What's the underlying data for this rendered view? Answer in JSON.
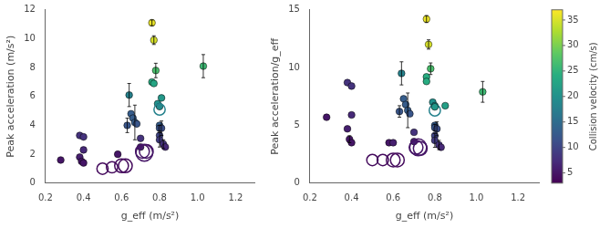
{
  "chart_data": [
    {
      "type": "scatter",
      "xlabel": "g_eff (m/s²)",
      "ylabel": "Peak acceleration (m/s²)",
      "xlim": [
        0.2,
        1.3
      ],
      "ylim": [
        0,
        12
      ],
      "xticks": [
        0.2,
        0.4,
        0.6,
        0.8,
        {
          "value": 1.0,
          "label": "1.0"
        },
        1.2
      ],
      "yticks": [
        0,
        2,
        4,
        6,
        8,
        10,
        12
      ],
      "grid": false,
      "x": [
        0.28,
        0.38,
        0.39,
        0.4,
        0.38,
        0.4,
        0.4,
        0.5,
        0.55,
        0.58,
        0.6,
        0.62,
        0.63,
        0.64,
        0.65,
        0.66,
        0.67,
        0.68,
        0.7,
        0.7,
        0.71,
        0.73,
        0.72,
        0.76,
        0.77,
        0.76,
        0.77,
        0.78,
        0.79,
        0.8,
        0.8,
        0.81,
        0.8,
        0.8,
        0.81,
        0.8,
        0.8,
        0.82,
        0.83,
        1.03
      ],
      "values": [
        1.6,
        1.8,
        1.5,
        1.4,
        3.3,
        3.2,
        2.3,
        1.0,
        1.1,
        2.0,
        1.2,
        1.2,
        4.0,
        6.1,
        4.8,
        4.5,
        4.2,
        4.1,
        3.1,
        2.5,
        2.2,
        2.2,
        2.1,
        7.0,
        6.9,
        11.1,
        9.9,
        7.8,
        5.5,
        5.3,
        5.1,
        5.9,
        4.0,
        3.8,
        3.8,
        3.3,
        3.0,
        2.7,
        2.5,
        8.1
      ],
      "color_values": [
        5,
        6,
        5,
        5,
        8,
        8,
        7,
        4,
        4,
        5,
        4,
        4,
        12,
        18,
        13,
        13,
        13,
        12,
        8,
        6,
        5,
        5,
        5,
        24,
        23,
        36,
        35,
        27,
        20,
        19,
        18,
        21,
        13,
        12,
        11,
        10,
        9,
        8,
        7,
        26
      ],
      "filled": [
        true,
        true,
        true,
        true,
        true,
        true,
        true,
        false,
        false,
        true,
        false,
        false,
        true,
        true,
        true,
        true,
        true,
        true,
        true,
        true,
        false,
        false,
        false,
        true,
        true,
        true,
        true,
        true,
        true,
        true,
        false,
        true,
        true,
        true,
        true,
        true,
        true,
        true,
        true,
        true
      ],
      "sizes": [
        30,
        30,
        30,
        30,
        30,
        30,
        30,
        80,
        80,
        30,
        120,
        120,
        30,
        30,
        30,
        30,
        30,
        30,
        30,
        30,
        120,
        120,
        180,
        30,
        30,
        30,
        30,
        30,
        30,
        30,
        80,
        30,
        30,
        30,
        30,
        30,
        30,
        30,
        30,
        30
      ],
      "errors": [
        0,
        0,
        0,
        0,
        0,
        0,
        0,
        0,
        0,
        0,
        0,
        0,
        0.5,
        0.8,
        0,
        0,
        1.2,
        0,
        0,
        0,
        0,
        0,
        0,
        0,
        0,
        0.2,
        0.3,
        0.5,
        0,
        0,
        0,
        0,
        0,
        0.2,
        0.5,
        0,
        0.5,
        0.3,
        0,
        0.8
      ]
    },
    {
      "type": "scatter",
      "xlabel": "g_eff (m/s²)",
      "ylabel": "Peak acceleration/g_eff",
      "xlim": [
        0.2,
        1.3
      ],
      "ylim": [
        0,
        15
      ],
      "xticks": [
        0.2,
        0.4,
        0.6,
        0.8,
        {
          "value": 1.0,
          "label": "1.0"
        },
        1.2
      ],
      "yticks": [
        0,
        5,
        10,
        15
      ],
      "grid": false,
      "x": [
        0.28,
        0.38,
        0.39,
        0.4,
        0.38,
        0.4,
        0.4,
        0.5,
        0.55,
        0.58,
        0.6,
        0.62,
        0.6,
        0.63,
        0.64,
        0.65,
        0.66,
        0.67,
        0.68,
        0.7,
        0.7,
        0.71,
        0.73,
        0.72,
        0.76,
        0.76,
        0.76,
        0.77,
        0.78,
        0.79,
        0.8,
        0.8,
        0.8,
        0.8,
        0.8,
        0.81,
        0.8,
        0.8,
        0.82,
        0.83,
        0.85,
        1.03
      ],
      "values": [
        5.7,
        4.7,
        3.8,
        3.5,
        8.7,
        8.4,
        5.9,
        2.0,
        2.0,
        3.5,
        2.0,
        2.0,
        3.5,
        6.2,
        9.5,
        7.3,
        6.8,
        6.3,
        6.0,
        4.4,
        3.6,
        3.1,
        3.0,
        3.1,
        9.2,
        8.8,
        14.2,
        12.0,
        9.9,
        7.0,
        6.7,
        6.3,
        6.6,
        5.0,
        4.8,
        4.7,
        4.1,
        3.7,
        3.3,
        3.1,
        6.7,
        7.9
      ],
      "color_values": [
        5,
        6,
        5,
        5,
        8,
        8,
        7,
        4,
        4,
        5,
        4,
        4,
        6,
        12,
        18,
        13,
        13,
        13,
        12,
        8,
        6,
        5,
        5,
        5,
        24,
        24,
        36,
        35,
        27,
        20,
        19,
        18,
        21,
        13,
        12,
        11,
        10,
        9,
        8,
        7,
        22,
        26
      ],
      "filled": [
        true,
        true,
        true,
        true,
        true,
        true,
        true,
        false,
        false,
        true,
        false,
        false,
        true,
        true,
        true,
        true,
        true,
        true,
        true,
        true,
        true,
        false,
        false,
        false,
        true,
        true,
        true,
        true,
        true,
        true,
        true,
        false,
        true,
        true,
        true,
        true,
        true,
        true,
        true,
        true,
        true,
        true
      ],
      "sizes": [
        30,
        30,
        30,
        30,
        30,
        30,
        30,
        80,
        80,
        30,
        120,
        120,
        30,
        30,
        30,
        30,
        30,
        30,
        30,
        30,
        30,
        120,
        120,
        180,
        30,
        30,
        30,
        30,
        30,
        30,
        30,
        80,
        30,
        30,
        30,
        30,
        30,
        30,
        30,
        30,
        30,
        30
      ],
      "errors": [
        0,
        0,
        0.3,
        0,
        0,
        0,
        0,
        0,
        0,
        0,
        0,
        0,
        0,
        0.5,
        1.0,
        0,
        0,
        1.5,
        0,
        0,
        0,
        0,
        0,
        0,
        0,
        0,
        0.3,
        0.4,
        0.5,
        0,
        0,
        0,
        0,
        0,
        0.3,
        0.6,
        0,
        0.6,
        0.4,
        0,
        0,
        0.9
      ],
      "colorbar_label": "Collision velocity (cm/s)",
      "colorbar_lim": [
        3,
        37
      ],
      "colorbar_ticks": [
        5,
        10,
        15,
        20,
        25,
        30,
        35
      ]
    }
  ]
}
